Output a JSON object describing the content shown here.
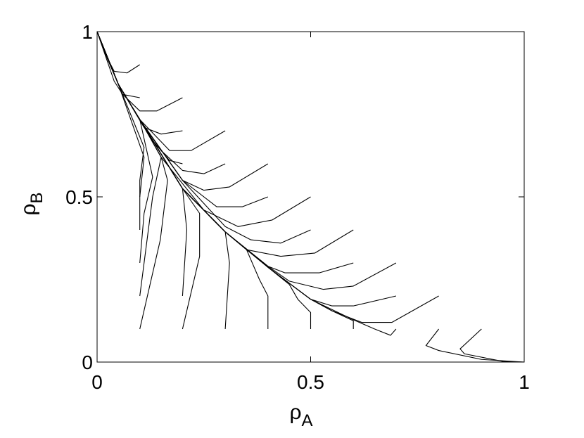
{
  "chart_data": {
    "type": "line",
    "color": "#000000",
    "grid": false,
    "xlabel_symbol": "ρ",
    "xlabel_subscript": "A",
    "ylabel_symbol": "ρ",
    "ylabel_subscript": "B",
    "xlim": [
      0,
      1
    ],
    "ylim": [
      0,
      1
    ],
    "xticks": [
      0,
      0.5,
      1
    ],
    "yticks": [
      0,
      0.5,
      1
    ],
    "series": [
      {
        "x": [
          0.1,
          0.07,
          0.04,
          0.02,
          0
        ],
        "y": [
          0.9,
          0.875,
          0.88,
          0.93,
          1
        ]
      },
      {
        "x": [
          0.1,
          0.06,
          0.04,
          0
        ],
        "y": [
          0.8,
          0.81,
          0.85,
          1
        ]
      },
      {
        "x": [
          0.2,
          0.14,
          0.1,
          0.06,
          0.02,
          0
        ],
        "y": [
          0.8,
          0.76,
          0.76,
          0.81,
          0.93,
          1
        ]
      },
      {
        "x": [
          0.2,
          0.15,
          0.11,
          0.05,
          0
        ],
        "y": [
          0.7,
          0.69,
          0.71,
          0.84,
          1
        ]
      },
      {
        "x": [
          0.3,
          0.22,
          0.17,
          0.1,
          0.05,
          0
        ],
        "y": [
          0.7,
          0.64,
          0.64,
          0.734,
          0.84,
          1
        ]
      },
      {
        "x": [
          0.2,
          0.17,
          0.13,
          0.05,
          0
        ],
        "y": [
          0.6,
          0.61,
          0.67,
          0.84,
          1
        ]
      },
      {
        "x": [
          0.3,
          0.25,
          0.2,
          0.15,
          0.1,
          0.05,
          0
        ],
        "y": [
          0.6,
          0.57,
          0.58,
          0.64,
          0.734,
          0.84,
          1
        ]
      },
      {
        "x": [
          0.4,
          0.31,
          0.25,
          0.2,
          0.1,
          0.05,
          0
        ],
        "y": [
          0.6,
          0.53,
          0.52,
          0.55,
          0.734,
          0.84,
          1
        ]
      },
      {
        "x": [
          0.4,
          0.34,
          0.28,
          0.2,
          0.1,
          0.05,
          0
        ],
        "y": [
          0.5,
          0.47,
          0.47,
          0.55,
          0.734,
          0.84,
          1
        ]
      },
      {
        "x": [
          0.5,
          0.41,
          0.33,
          0.25,
          0.15,
          0.1,
          0.05,
          0
        ],
        "y": [
          0.5,
          0.43,
          0.41,
          0.46,
          0.62,
          0.734,
          0.84,
          1
        ]
      },
      {
        "x": [
          0.5,
          0.43,
          0.36,
          0.3,
          0.2,
          0.1,
          0.05,
          0
        ],
        "y": [
          0.4,
          0.36,
          0.37,
          0.41,
          0.55,
          0.734,
          0.84,
          1
        ]
      },
      {
        "x": [
          0.6,
          0.51,
          0.43,
          0.35,
          0.3,
          0.2,
          0.1,
          0.05,
          0
        ],
        "y": [
          0.4,
          0.33,
          0.32,
          0.34,
          0.394,
          0.525,
          0.734,
          0.84,
          1
        ]
      },
      {
        "x": [
          0.6,
          0.52,
          0.44,
          0.4,
          0.3,
          0.2,
          0.1,
          0.05,
          0
        ],
        "y": [
          0.3,
          0.27,
          0.27,
          0.29,
          0.394,
          0.525,
          0.734,
          0.84,
          1
        ]
      },
      {
        "x": [
          0.7,
          0.6,
          0.53,
          0.45,
          0.4,
          0.3,
          0.2,
          0.1,
          0.05,
          0
        ],
        "y": [
          0.3,
          0.23,
          0.22,
          0.245,
          0.29,
          0.394,
          0.525,
          0.734,
          0.84,
          1
        ]
      },
      {
        "x": [
          0.7,
          0.6,
          0.55,
          0.5,
          0.4,
          0.3,
          0.2,
          0.1,
          0.05,
          0
        ],
        "y": [
          0.2,
          0.17,
          0.17,
          0.19,
          0.287,
          0.394,
          0.525,
          0.734,
          0.84,
          1
        ]
      },
      {
        "x": [
          0.8,
          0.69,
          0.62,
          0.55,
          0.5,
          0.4,
          0.3,
          0.2,
          0.1,
          0.05,
          0
        ],
        "y": [
          0.2,
          0.12,
          0.12,
          0.155,
          0.19,
          0.287,
          0.394,
          0.525,
          0.734,
          0.84,
          1
        ]
      },
      {
        "x": [
          0.6,
          0.6,
          0.55,
          0.5,
          0.4,
          0.3,
          0.2,
          0.1,
          0.05,
          0
        ],
        "y": [
          0.1,
          0.125,
          0.155,
          0.19,
          0.287,
          0.394,
          0.525,
          0.734,
          0.84,
          1
        ]
      },
      {
        "x": [
          0.7,
          0.687,
          0.65,
          0.6,
          0.5,
          0.4,
          0.3,
          0.2,
          0.1,
          0.05,
          0
        ],
        "y": [
          0.1,
          0.081,
          0.1,
          0.128,
          0.19,
          0.287,
          0.394,
          0.525,
          0.734,
          0.84,
          1
        ]
      },
      {
        "x": [
          0.8,
          0.77,
          0.8,
          0.9,
          1
        ],
        "y": [
          0.1,
          0.05,
          0.035,
          0.008,
          0
        ]
      },
      {
        "x": [
          0.9,
          0.85,
          0.86,
          0.95,
          1
        ],
        "y": [
          0.1,
          0.04,
          0.025,
          0.002,
          0
        ]
      },
      {
        "x": [
          0.1,
          0.148,
          0.165,
          0.15,
          0.1,
          0.05,
          0
        ],
        "y": [
          0.1,
          0.37,
          0.55,
          0.62,
          0.734,
          0.84,
          1
        ]
      },
      {
        "x": [
          0.2,
          0.24,
          0.24,
          0.2,
          0.1,
          0.05,
          0
        ],
        "y": [
          0.1,
          0.32,
          0.45,
          0.525,
          0.734,
          0.84,
          1
        ]
      },
      {
        "x": [
          0.3,
          0.31,
          0.3,
          0.2,
          0.1,
          0.05,
          0
        ],
        "y": [
          0.1,
          0.3,
          0.394,
          0.525,
          0.734,
          0.84,
          1
        ]
      },
      {
        "x": [
          0.4,
          0.4,
          0.38,
          0.35,
          0.3,
          0.2,
          0.1,
          0.05,
          0
        ],
        "y": [
          0.1,
          0.2,
          0.25,
          0.34,
          0.394,
          0.525,
          0.734,
          0.84,
          1
        ]
      },
      {
        "x": [
          0.5,
          0.5,
          0.47,
          0.45,
          0.4,
          0.3,
          0.2,
          0.1,
          0.05,
          0
        ],
        "y": [
          0.1,
          0.15,
          0.19,
          0.235,
          0.287,
          0.394,
          0.525,
          0.734,
          0.84,
          1
        ]
      },
      {
        "x": [
          0.1,
          0.12,
          0.13,
          0.15,
          0.1,
          0.05,
          0
        ],
        "y": [
          0.2,
          0.4,
          0.5,
          0.62,
          0.734,
          0.84,
          1
        ]
      },
      {
        "x": [
          0.2,
          0.21,
          0.2,
          0.1,
          0.05,
          0
        ],
        "y": [
          0.2,
          0.4,
          0.525,
          0.734,
          0.84,
          1
        ]
      },
      {
        "x": [
          0.1,
          0.11,
          0.13,
          0.1,
          0.05,
          0
        ],
        "y": [
          0.3,
          0.45,
          0.56,
          0.734,
          0.84,
          1
        ]
      },
      {
        "x": [
          0.1,
          0.1,
          0.11,
          0.05,
          0
        ],
        "y": [
          0.4,
          0.5,
          0.62,
          0.84,
          1
        ]
      },
      {
        "x": [
          0.1,
          0.1,
          0.11,
          0.05,
          0
        ],
        "y": [
          0.5,
          0.55,
          0.65,
          0.84,
          1
        ]
      }
    ]
  }
}
